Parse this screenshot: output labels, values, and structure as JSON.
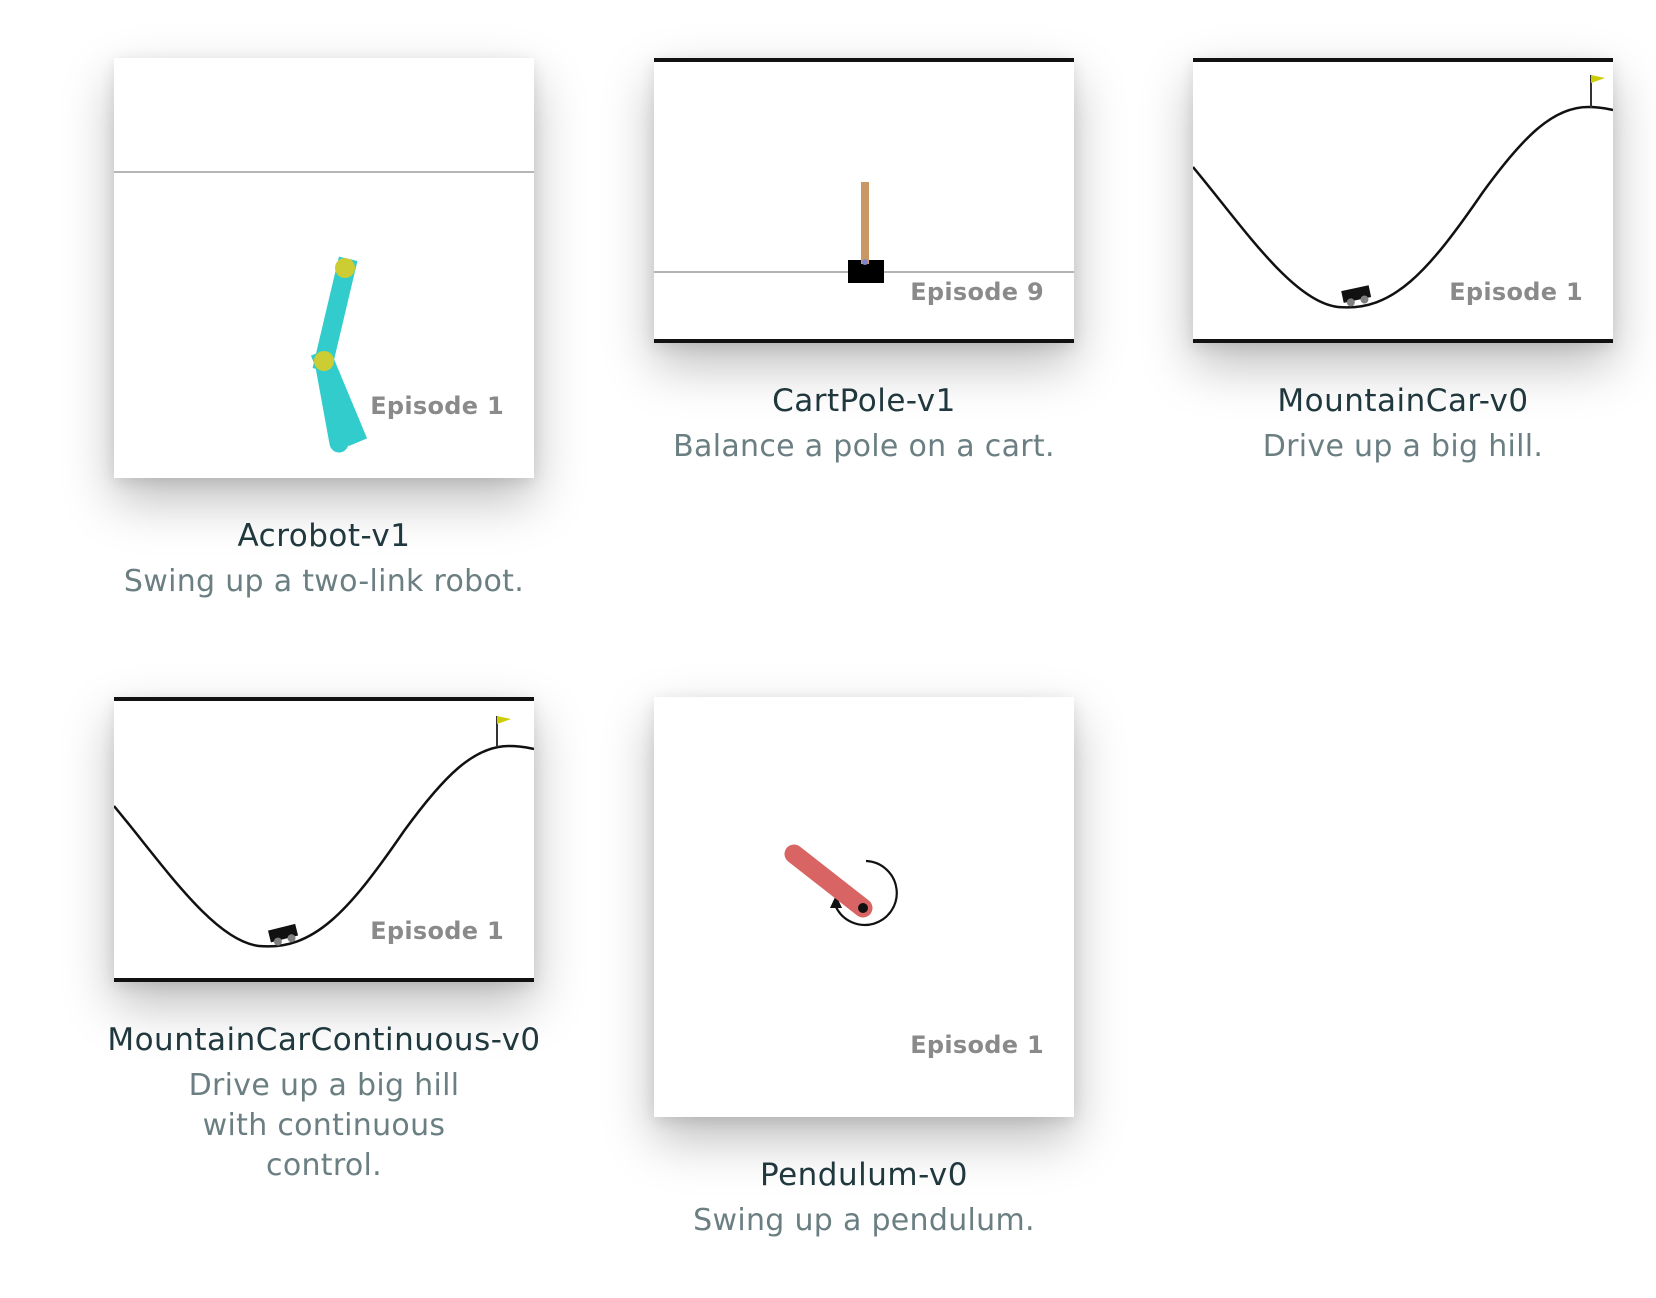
{
  "environments": [
    {
      "name": "Acrobot-v1",
      "description": "Swing up a two-link robot.",
      "episode": "Episode 1"
    },
    {
      "name": "CartPole-v1",
      "description": "Balance a pole on a cart.",
      "episode": "Episode 9"
    },
    {
      "name": "MountainCar-v0",
      "description": "Drive up a big hill.",
      "episode": "Episode 1"
    },
    {
      "name": "MountainCarContinuous-v0",
      "description": "Drive up a big hill with continuous control.",
      "episode": "Episode 1"
    },
    {
      "name": "Pendulum-v0",
      "description": "Swing up a pendulum.",
      "episode": "Episode 1"
    }
  ],
  "colors": {
    "acrobot_link": "#33cccc",
    "acrobot_joint": "#cccc33",
    "cartpole_pole": "#ca9865",
    "cartpole_cart": "#000000",
    "pendulum_rod": "#d96464",
    "flag": "#cccc00",
    "title": "#213a3f",
    "description": "#6b7f82",
    "episode_label": "#8a8a8a"
  }
}
